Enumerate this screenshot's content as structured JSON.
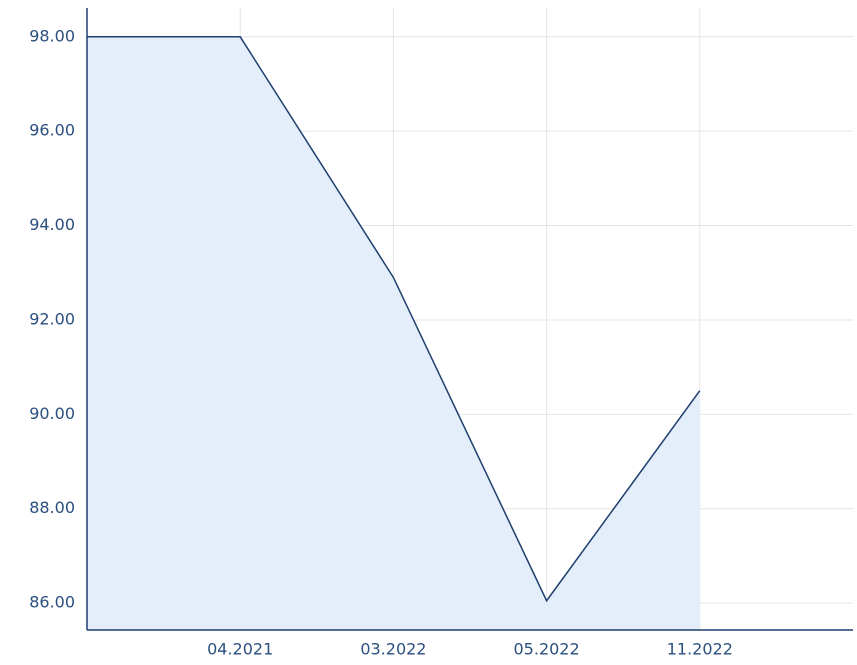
{
  "chart_data": {
    "type": "area",
    "categories": [
      null,
      "04.2021",
      "03.2022",
      "05.2022",
      "11.2022",
      null
    ],
    "series": [
      {
        "color": "#1f3f6e",
        "fill": "#e3eefa",
        "values": [
          98,
          98,
          92.9,
          86.05,
          90.5,
          null
        ]
      }
    ],
    "ylim": [
      85.43,
      98.61
    ],
    "yticks": [
      {
        "value": 86,
        "label": "86.00"
      },
      {
        "value": 88,
        "label": "88.00"
      },
      {
        "value": 90,
        "label": "90.00"
      },
      {
        "value": 92,
        "label": "92.00"
      },
      {
        "value": 94,
        "label": "94.00"
      },
      {
        "value": 96,
        "label": "96.00"
      },
      {
        "value": 98,
        "label": "98.00"
      }
    ],
    "grid": true
  }
}
